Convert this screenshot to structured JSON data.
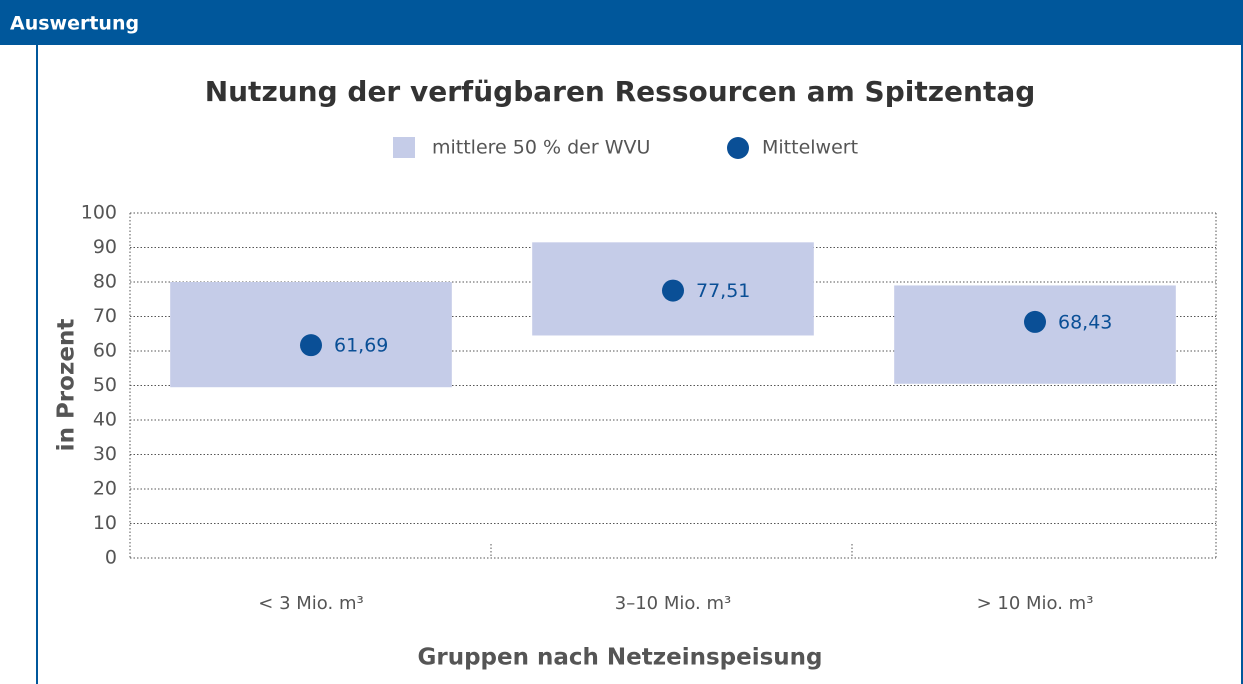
{
  "panel_title": "Auswertung",
  "chart_data": {
    "type": "range",
    "title": "Nutzung der verfügbaren Ressourcen am Spitzentag",
    "x_label": "Gruppen nach Netzeinspeisung",
    "y_label": "in Prozent",
    "categories": [
      "< 3 Mio. m³",
      "3–10 Mio. m³",
      "> 10 Mio. m³"
    ],
    "series": [
      {
        "name": "mittlere 50 % der WVU",
        "color": "#c5cce8",
        "low": [
          49.5,
          64.5,
          50.5
        ],
        "high": [
          80,
          91.5,
          79
        ]
      },
      {
        "name": "Mittelwert",
        "color": "#0a4f96",
        "values": [
          61.69,
          77.51,
          68.43
        ],
        "value_labels": [
          "61,69",
          "77,51",
          "68,43"
        ]
      }
    ],
    "ylim": [
      0,
      100
    ],
    "yticks": [
      0,
      10,
      20,
      30,
      40,
      50,
      60,
      70,
      80,
      90,
      100
    ],
    "grid": true
  }
}
